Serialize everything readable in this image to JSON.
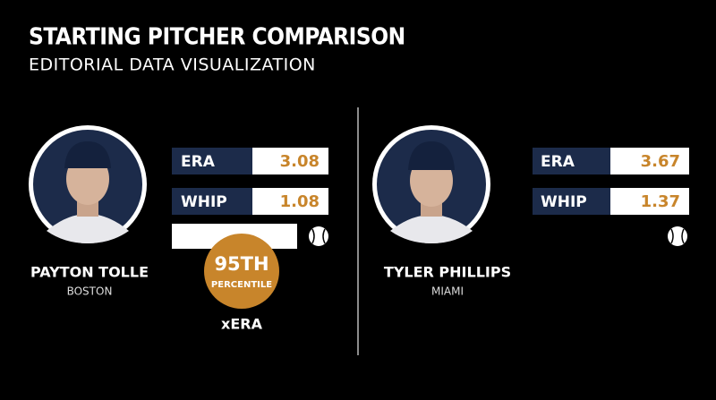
{
  "header": {
    "title": "STARTING PITCHER COMPARISON",
    "subtitle": "EDITORIAL DATA VISUALIZATION"
  },
  "players": [
    {
      "name": "PAYTON TOLLE",
      "team": "BOSTON",
      "stats": [
        {
          "label": "ERA",
          "value": "3.08"
        },
        {
          "label": "WHIP",
          "value": "1.08"
        }
      ],
      "badge": {
        "rank": "95TH",
        "text": "PERCENTILE",
        "metric": "xERA"
      }
    },
    {
      "name": "TYLER PHILLIPS",
      "team": "MIAMI",
      "stats": [
        {
          "label": "ERA",
          "value": "3.67"
        },
        {
          "label": "WHIP",
          "value": "1.37"
        }
      ]
    }
  ]
}
